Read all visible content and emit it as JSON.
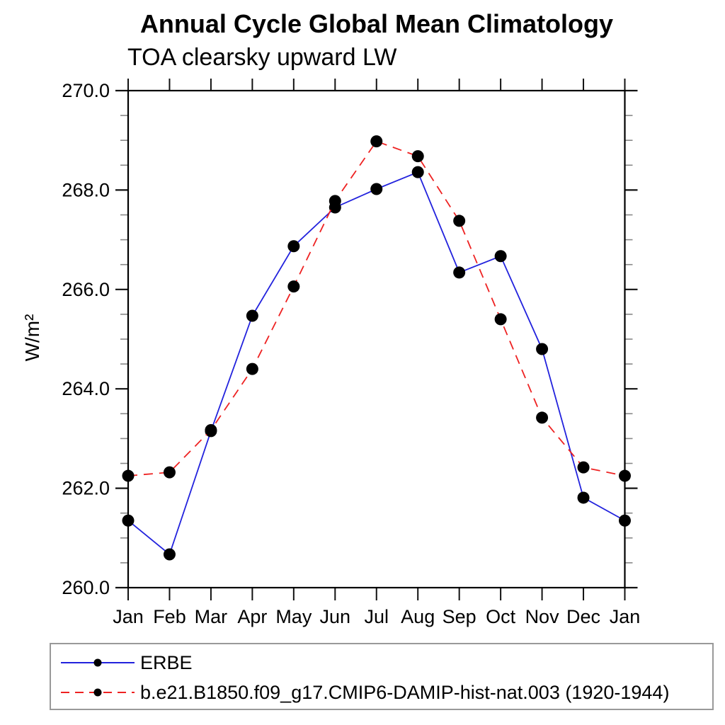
{
  "chart_data": {
    "type": "line",
    "title": "Annual Cycle Global Mean Climatology",
    "subtitle": "TOA clearsky upward LW",
    "ylabel": "W/m²",
    "xlabel": "",
    "categories": [
      "Jan",
      "Feb",
      "Mar",
      "Apr",
      "May",
      "Jun",
      "Jul",
      "Aug",
      "Sep",
      "Oct",
      "Nov",
      "Dec",
      "Jan"
    ],
    "ylim": [
      260.0,
      270.0
    ],
    "ytick_values": [
      260,
      262,
      264,
      266,
      268,
      270
    ],
    "ytick_labels": [
      "260.0",
      "262.0",
      "264.0",
      "266.0",
      "268.0",
      "270.0"
    ],
    "minor_tick_step": 0.5,
    "grid": false,
    "legend_position": "bottom-left-box",
    "series": [
      {
        "name": "ERBE",
        "color": "#2222dd",
        "line_style": "solid",
        "marker": "filled-circle",
        "marker_color": "#000000",
        "values": [
          261.35,
          260.67,
          263.15,
          265.47,
          266.87,
          267.65,
          268.02,
          268.36,
          266.34,
          266.67,
          264.8,
          261.81,
          261.35
        ]
      },
      {
        "name": "b.e21.B1850.f09_g17.CMIP6-DAMIP-hist-nat.003 (1920-1944)",
        "color": "#ee2222",
        "line_style": "dashed",
        "marker": "filled-circle",
        "marker_color": "#000000",
        "values": [
          262.25,
          262.32,
          263.17,
          264.4,
          266.06,
          267.78,
          268.98,
          268.68,
          267.38,
          265.4,
          263.42,
          262.42,
          262.25
        ]
      }
    ]
  }
}
